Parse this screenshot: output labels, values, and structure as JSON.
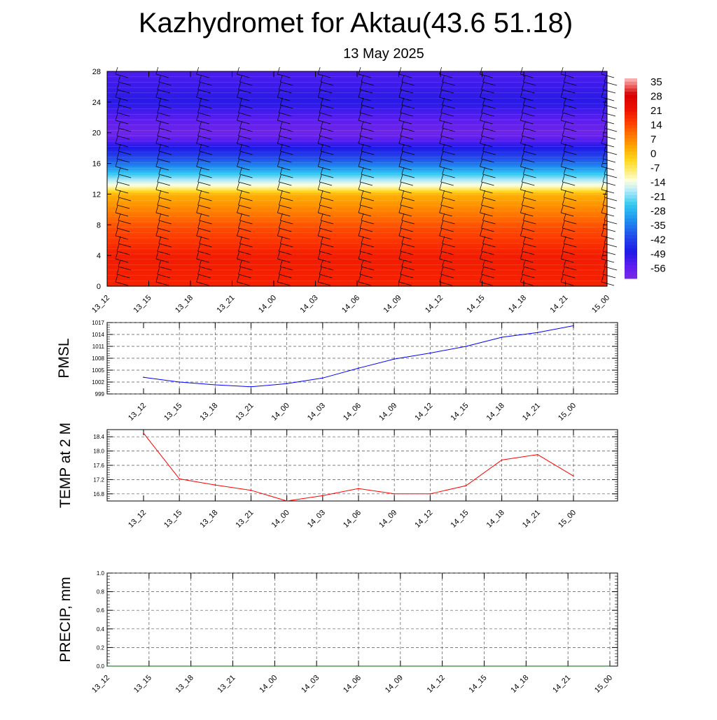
{
  "header": {
    "title": "Kazhydromet for Aktau(43.6 51.18)",
    "subtitle": "13 May 2025"
  },
  "chart_data": [
    {
      "type": "heatmap",
      "description_of_axes": "time vs model level",
      "x": [
        "13_12",
        "13_15",
        "13_18",
        "13_21",
        "14_00",
        "14_03",
        "14_06",
        "14_09",
        "14_12",
        "14_15",
        "14_18",
        "14_21",
        "15_00"
      ],
      "y_ticks": [
        0,
        4,
        8,
        12,
        16,
        20,
        24,
        28
      ],
      "ylim": [
        0,
        28
      ],
      "colorbar": {
        "labels": [
          "35",
          "28",
          "21",
          "14",
          "7",
          "0",
          "-7",
          "-14",
          "-21",
          "-28",
          "-35",
          "-42",
          "-49",
          "-56"
        ],
        "range": [
          -60,
          38
        ]
      },
      "approx_temperature_by_level": [
        {
          "level": 0,
          "value": 20
        },
        {
          "level": 4,
          "value": 21
        },
        {
          "level": 8,
          "value": 14
        },
        {
          "level": 12,
          "value": 3
        },
        {
          "level": 13,
          "value": -10
        },
        {
          "level": 16,
          "value": -35
        },
        {
          "level": 20,
          "value": -58
        },
        {
          "level": 24,
          "value": -48
        },
        {
          "level": 28,
          "value": -52
        }
      ],
      "overlay": "wind barbs"
    },
    {
      "type": "line",
      "ylabel": "PMSL",
      "x": [
        "13_12",
        "13_15",
        "13_18",
        "13_21",
        "14_00",
        "14_03",
        "14_06",
        "14_09",
        "14_12",
        "14_15",
        "14_18",
        "14_21",
        "15_00"
      ],
      "y_ticks": [
        "999",
        "1002",
        "1005",
        "1008",
        "1011",
        "1014",
        "1017"
      ],
      "ylim": [
        999,
        1017
      ],
      "series": [
        {
          "values": [
            1003.2,
            1002.0,
            1001.3,
            1000.8,
            1001.6,
            1003.0,
            1005.5,
            1007.8,
            1009.3,
            1011.0,
            1013.3,
            1014.5,
            1016.2
          ],
          "color": "#0000ff"
        }
      ]
    },
    {
      "type": "line",
      "ylabel": "TEMP at 2 M",
      "x": [
        "13_12",
        "13_15",
        "13_18",
        "13_21",
        "14_00",
        "14_03",
        "14_06",
        "14_09",
        "14_12",
        "14_15",
        "14_18",
        "14_21",
        "15_00"
      ],
      "y_ticks": [
        "16.8",
        "17.2",
        "17.6",
        "18.0",
        "18.4"
      ],
      "ylim": [
        16.6,
        18.6
      ],
      "series": [
        {
          "values": [
            18.5,
            17.22,
            17.05,
            16.9,
            16.6,
            16.75,
            16.95,
            16.8,
            16.8,
            17.03,
            17.75,
            17.9,
            17.3
          ],
          "color": "#ff0000"
        }
      ]
    },
    {
      "type": "line",
      "ylabel": "PRECIP, mm",
      "x": [
        "13_12",
        "13_15",
        "13_18",
        "13_21",
        "14_00",
        "14_03",
        "14_06",
        "14_09",
        "14_12",
        "14_15",
        "14_18",
        "14_21",
        "15_00"
      ],
      "y_ticks": [
        "0.0",
        "0.2",
        "0.4",
        "0.6",
        "0.8",
        "1.0"
      ],
      "ylim": [
        0,
        1
      ],
      "series": [
        {
          "values": [
            0,
            0,
            0,
            0,
            0,
            0,
            0,
            0,
            0,
            0,
            0,
            0,
            0
          ],
          "color": "#006400"
        }
      ]
    }
  ]
}
